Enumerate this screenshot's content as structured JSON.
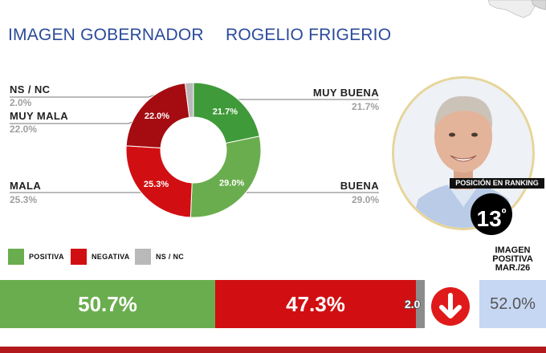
{
  "header": {
    "title": "IMAGEN GOBERNADOR",
    "name": "ROGELIO FRIGERIO"
  },
  "chart_data": {
    "type": "pie",
    "style": "donut",
    "slices": [
      {
        "label": "MUY BUENA",
        "value": 21.7,
        "display": "21.7%",
        "color": "#3f9a39"
      },
      {
        "label": "BUENA",
        "value": 29.0,
        "display": "29.0%",
        "color": "#6aad4e"
      },
      {
        "label": "MALA",
        "value": 25.3,
        "display": "25.3%",
        "color": "#d10f12"
      },
      {
        "label": "MUY MALA",
        "value": 22.0,
        "display": "22.0%",
        "color": "#a40c11"
      },
      {
        "label": "NS / NC",
        "value": 2.0,
        "display": "2.0%",
        "color": "#b9b9b9"
      }
    ],
    "legend": [
      {
        "label": "POSITIVA",
        "color": "#6aad4e"
      },
      {
        "label": "NEGATIVA",
        "color": "#d10f12"
      },
      {
        "label": "NS / NC",
        "color": "#b9b9b9"
      }
    ],
    "summary_bar": [
      {
        "label": "POSITIVA",
        "value": 50.7,
        "display": "50.7%",
        "color": "#6aad4e"
      },
      {
        "label": "NEGATIVA",
        "value": 47.3,
        "display": "47.3%",
        "color": "#d10f12"
      },
      {
        "label": "NS / NC",
        "value": 2.0,
        "display": "2.0",
        "color": "#8c8c8c"
      }
    ]
  },
  "ranking": {
    "label": "POSICIÓN EN RANKING",
    "position": "13",
    "suffix": "º"
  },
  "comparison": {
    "label_line1": "IMAGEN",
    "label_line2": "POSITIVA",
    "label_line3": "MAR./26",
    "value": "52.0%",
    "trend": "down"
  }
}
